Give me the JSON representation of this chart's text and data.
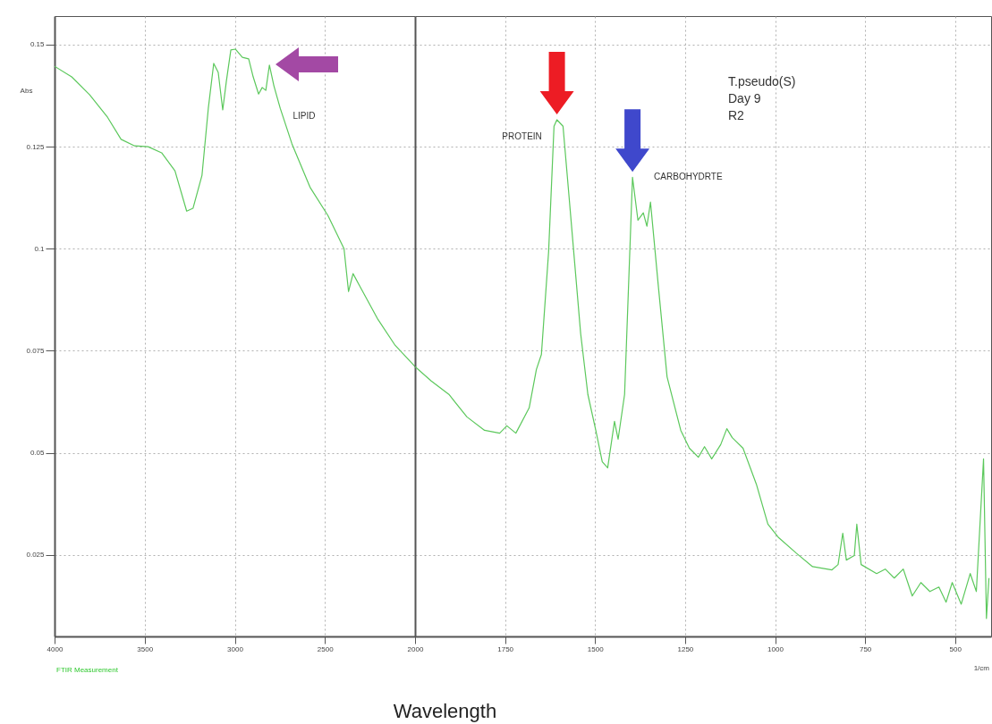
{
  "chart_data": [
    {
      "type": "line",
      "ylabel": "Abs",
      "xlim": [
        4000,
        2000
      ],
      "xticks": [
        4000,
        3500,
        3000,
        2500
      ],
      "ylim": [
        0.005,
        0.157
      ],
      "yticks": [
        0.025,
        0.05,
        0.075,
        0.1,
        0.125,
        0.15
      ],
      "grid": true,
      "x": [
        4000,
        3905,
        3805,
        3706,
        3631,
        3556,
        3481,
        3406,
        3332,
        3267,
        3232,
        3182,
        3147,
        3117,
        3092,
        3067,
        3047,
        3022,
        2997,
        2958,
        2923,
        2898,
        2868,
        2848,
        2828,
        2808,
        2783,
        2748,
        2683,
        2583,
        2483,
        2394,
        2369,
        2344,
        2309,
        2209,
        2110,
        2000
      ],
      "series": [
        {
          "color": "#5cc85c",
          "values": [
            0.1447,
            0.1421,
            0.1377,
            0.1322,
            0.1268,
            0.1252,
            0.125,
            0.1235,
            0.1191,
            0.1092,
            0.1099,
            0.118,
            0.1344,
            0.1454,
            0.1432,
            0.134,
            0.141,
            0.1487,
            0.1489,
            0.1469,
            0.1465,
            0.1421,
            0.1379,
            0.1395,
            0.1388,
            0.145,
            0.1399,
            0.1344,
            0.1257,
            0.1151,
            0.1081,
            0.1,
            0.0895,
            0.0939,
            0.091,
            0.0829,
            0.0763,
            0.0711
          ]
        }
      ],
      "annotations": [
        "LIPID",
        "FTIR Measurement"
      ]
    },
    {
      "type": "line",
      "xlabel": "Wavelength",
      "tick_labels": "x",
      "xlim": [
        2000,
        400
      ],
      "xticks": [
        2000,
        1750,
        1500,
        1250,
        1000,
        750,
        500
      ],
      "ylim": [
        0.005,
        0.157
      ],
      "yticks": [
        0.025,
        0.05,
        0.075,
        0.1,
        0.125,
        0.15
      ],
      "grid": true,
      "x": [
        2000,
        1955,
        1906,
        1856,
        1807,
        1765,
        1745,
        1720,
        1683,
        1663,
        1649,
        1629,
        1614,
        1606,
        1589,
        1572,
        1540,
        1520,
        1498,
        1480,
        1465,
        1446,
        1436,
        1418,
        1396,
        1381,
        1366,
        1356,
        1346,
        1324,
        1300,
        1262,
        1238,
        1213,
        1196,
        1176,
        1151,
        1134,
        1119,
        1089,
        1052,
        1020,
        990,
        941,
        896,
        842,
        825,
        812,
        802,
        780,
        773,
        761,
        718,
        694,
        669,
        644,
        619,
        595,
        570,
        545,
        525,
        508,
        483,
        458,
        441,
        421,
        413,
        406
      ],
      "series": [
        {
          "color": "#5cc85c",
          "values": [
            0.0711,
            0.0676,
            0.0643,
            0.0588,
            0.0555,
            0.0548,
            0.0566,
            0.0548,
            0.061,
            0.0704,
            0.0741,
            0.0993,
            0.13,
            0.1316,
            0.13,
            0.1125,
            0.0792,
            0.0643,
            0.0555,
            0.0478,
            0.0463,
            0.0577,
            0.0533,
            0.0643,
            0.1175,
            0.107,
            0.1088,
            0.1055,
            0.1114,
            0.0906,
            0.0686,
            0.0555,
            0.0511,
            0.0489,
            0.0515,
            0.0485,
            0.052,
            0.0559,
            0.0537,
            0.0511,
            0.0423,
            0.0325,
            0.0292,
            0.0254,
            0.0221,
            0.0213,
            0.0226,
            0.0303,
            0.0237,
            0.0248,
            0.0325,
            0.0226,
            0.0204,
            0.0215,
            0.0193,
            0.0215,
            0.0149,
            0.0182,
            0.016,
            0.0171,
            0.0134,
            0.0182,
            0.0129,
            0.0204,
            0.016,
            0.0485,
            0.0094,
            0.0193
          ]
        }
      ],
      "annotations": [
        {
          "text": "PROTEIN",
          "x": 1606,
          "y": 0.1316
        },
        {
          "text": "CARBOHYDRTE",
          "x": 1396,
          "y": 0.1175
        },
        "T.pseudo(S)",
        "Day 9",
        "R2",
        "1/cm"
      ]
    }
  ]
}
